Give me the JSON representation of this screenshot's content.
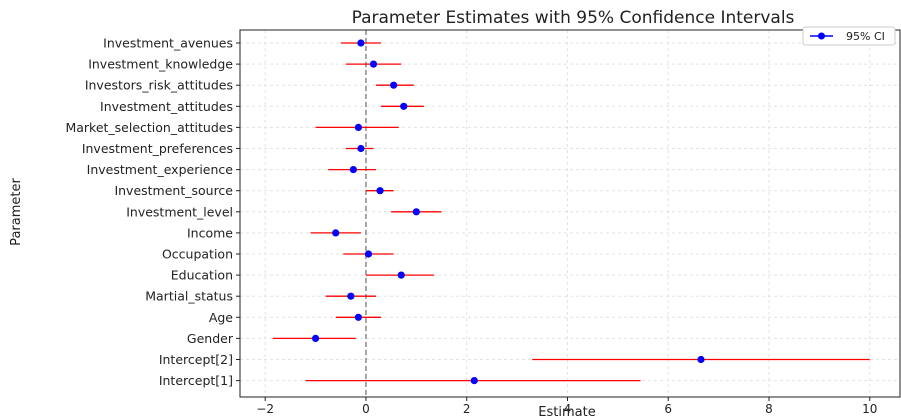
{
  "chart_data": {
    "type": "scatter",
    "title": "Parameter Estimates with 95% Confidence Intervals",
    "xlabel": "Estimate",
    "ylabel": "Parameter",
    "xlim": [
      -2.5,
      10.6
    ],
    "xticks": [
      -2,
      0,
      2,
      4,
      6,
      8,
      10
    ],
    "xtick_labels": [
      "−2",
      "0",
      "2",
      "4",
      "6",
      "8",
      "10"
    ],
    "reference_line_x": 0,
    "grid": true,
    "legend": {
      "label": "95% CI",
      "placement": "top-right"
    },
    "colors": {
      "point": "#0000ff",
      "interval": "#ff0000",
      "reference": "#777777",
      "grid": "#e3e3e3"
    },
    "series": [
      {
        "name": "95% CI",
        "points": [
          {
            "parameter": "Investment_avenues",
            "estimate": -0.1,
            "lower": -0.5,
            "upper": 0.3
          },
          {
            "parameter": "Investment_knowledge",
            "estimate": 0.15,
            "lower": -0.4,
            "upper": 0.7
          },
          {
            "parameter": "Investors_risk_attitudes",
            "estimate": 0.55,
            "lower": 0.2,
            "upper": 0.95
          },
          {
            "parameter": "Investment_attitudes",
            "estimate": 0.75,
            "lower": 0.3,
            "upper": 1.15
          },
          {
            "parameter": "Market_selection_attitudes",
            "estimate": -0.15,
            "lower": -1.0,
            "upper": 0.65
          },
          {
            "parameter": "Investment_preferences",
            "estimate": -0.1,
            "lower": -0.4,
            "upper": 0.15
          },
          {
            "parameter": "Investment_experience",
            "estimate": -0.25,
            "lower": -0.75,
            "upper": 0.2
          },
          {
            "parameter": "Investment_source",
            "estimate": 0.28,
            "lower": 0.0,
            "upper": 0.55
          },
          {
            "parameter": "Investment_level",
            "estimate": 1.0,
            "lower": 0.5,
            "upper": 1.5
          },
          {
            "parameter": "Income",
            "estimate": -0.6,
            "lower": -1.1,
            "upper": -0.1
          },
          {
            "parameter": "Occupation",
            "estimate": 0.05,
            "lower": -0.45,
            "upper": 0.55
          },
          {
            "parameter": "Education",
            "estimate": 0.7,
            "lower": 0.0,
            "upper": 1.35
          },
          {
            "parameter": "Martial_status",
            "estimate": -0.3,
            "lower": -0.8,
            "upper": 0.2
          },
          {
            "parameter": "Age",
            "estimate": -0.15,
            "lower": -0.6,
            "upper": 0.3
          },
          {
            "parameter": "Gender",
            "estimate": -1.0,
            "lower": -1.85,
            "upper": -0.2
          },
          {
            "parameter": "Intercept[2]",
            "estimate": 6.65,
            "lower": 3.3,
            "upper": 10.0
          },
          {
            "parameter": "Intercept[1]",
            "estimate": 2.15,
            "lower": -1.2,
            "upper": 5.45
          }
        ]
      }
    ]
  }
}
